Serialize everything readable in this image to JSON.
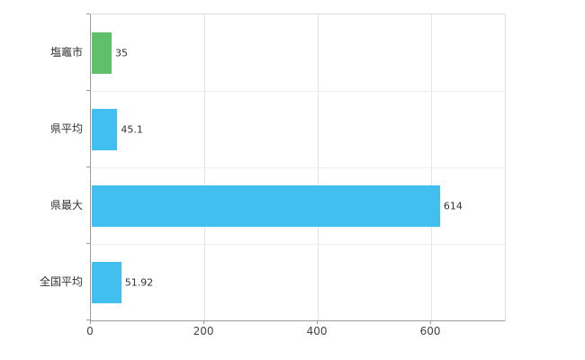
{
  "chart_data": {
    "type": "bar",
    "orientation": "horizontal",
    "title": "",
    "xlabel": "",
    "ylabel": "",
    "categories": [
      "塩竈市",
      "県平均",
      "県最大",
      "全国平均"
    ],
    "values": [
      35,
      45.1,
      614,
      51.92
    ],
    "value_labels": [
      "35",
      "45.1",
      "614",
      "51.92"
    ],
    "bar_colors": [
      "#5fbf6b",
      "#41c0ef",
      "#41c0ef",
      "#41c0ef"
    ],
    "x_ticks": [
      0,
      200,
      400,
      600
    ],
    "x_tick_labels": [
      "0",
      "200",
      "400",
      "600"
    ],
    "xlim": [
      0,
      730
    ],
    "grid": true,
    "legend": "none",
    "background_color": "#ffffff",
    "axis_color": "#9a9a9a",
    "gridline_color": "#e4e4e4"
  }
}
